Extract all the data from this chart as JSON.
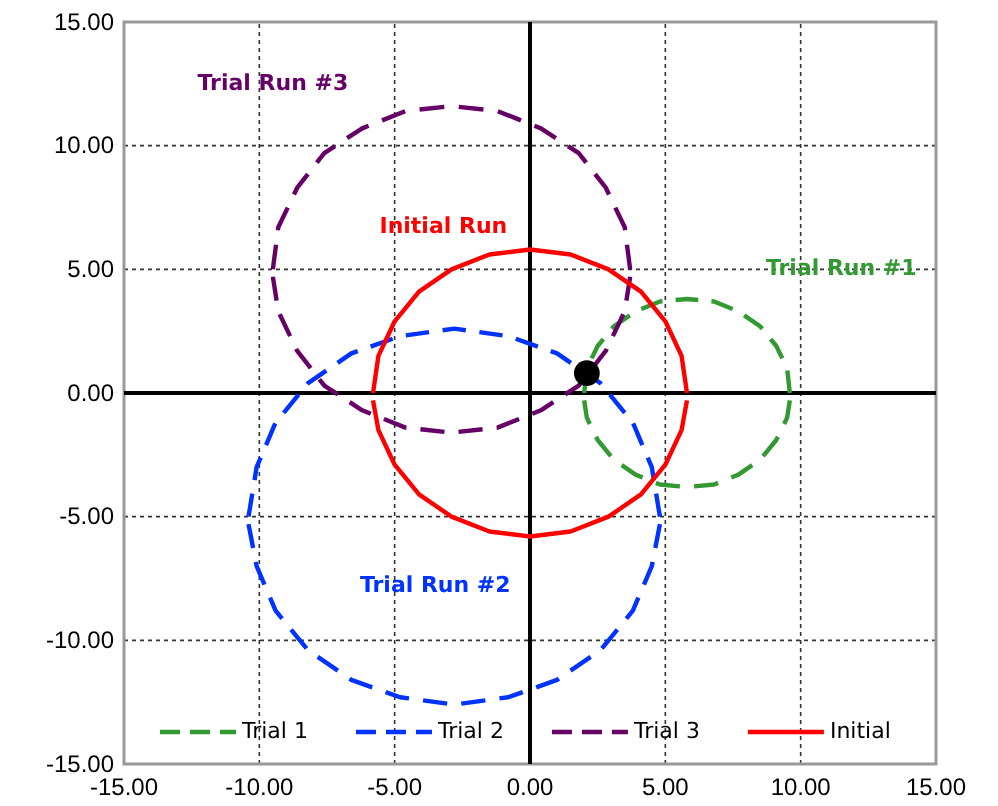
{
  "chart_data": {
    "type": "line",
    "xlim": [
      -15,
      15
    ],
    "ylim": [
      -15,
      15
    ],
    "xticks": [
      {
        "value": -15,
        "label": "-15.00"
      },
      {
        "value": -10,
        "label": "-10.00"
      },
      {
        "value": -5,
        "label": "-5.00"
      },
      {
        "value": 0,
        "label": "0.00"
      },
      {
        "value": 5,
        "label": "5.00"
      },
      {
        "value": 10,
        "label": "10.00"
      },
      {
        "value": 15,
        "label": "15.00"
      }
    ],
    "yticks": [
      {
        "value": -15,
        "label": "-15.00"
      },
      {
        "value": -10,
        "label": "-10.00"
      },
      {
        "value": -5,
        "label": "-5.00"
      },
      {
        "value": 0,
        "label": "0.00"
      },
      {
        "value": 5,
        "label": "5.00"
      },
      {
        "value": 10,
        "label": "10.00"
      },
      {
        "value": 15,
        "label": "15.00"
      }
    ],
    "grid": true,
    "legend": "bottom",
    "series": [
      {
        "name": "Trial 1",
        "color": "#339933",
        "line_style": "dashed",
        "marker": "none",
        "x": [
          2.0,
          2.1,
          2.5,
          3.1,
          3.9,
          4.8,
          5.8,
          6.8,
          7.7,
          8.5,
          9.1,
          9.5,
          9.6
        ],
        "values": [
          0,
          1.0,
          1.9,
          2.7,
          3.3,
          3.7,
          3.8,
          3.7,
          3.3,
          2.7,
          1.9,
          1.0,
          0
        ]
      },
      {
        "color": "#339933",
        "line_style": "dashed",
        "marker": "none",
        "x": [
          2.0,
          2.1,
          2.5,
          3.1,
          3.9,
          4.8,
          5.8,
          6.8,
          7.7,
          8.5,
          9.1,
          9.5,
          9.6
        ],
        "values": [
          -0.3,
          -1.0,
          -1.9,
          -2.7,
          -3.3,
          -3.7,
          -3.8,
          -3.7,
          -3.3,
          -2.7,
          -1.9,
          -1.0,
          -0.3
        ]
      },
      {
        "name": "Trial 2",
        "color": "#0033ff",
        "line_style": "dashed",
        "marker": "none",
        "x": [
          -10.4,
          -10.1,
          -9.4,
          -8.2,
          -6.6,
          -4.8,
          -2.8,
          -0.8,
          1.0,
          2.6,
          3.8,
          4.5,
          4.8
        ],
        "values": [
          -5.0,
          -3.0,
          -1.2,
          0.4,
          1.6,
          2.3,
          2.6,
          2.3,
          1.6,
          0.4,
          -1.2,
          -3.0,
          -5.0
        ]
      },
      {
        "color": "#0033ff",
        "line_style": "dashed",
        "marker": "none",
        "x": [
          -10.4,
          -10.1,
          -9.4,
          -8.2,
          -6.6,
          -4.8,
          -2.8,
          -0.8,
          1.0,
          2.6,
          3.8,
          4.5,
          4.8
        ],
        "values": [
          -5.3,
          -7.0,
          -8.8,
          -10.4,
          -11.6,
          -12.3,
          -12.6,
          -12.3,
          -11.6,
          -10.4,
          -8.8,
          -7.0,
          -5.3
        ]
      },
      {
        "name": "Trial 3",
        "color": "#660066",
        "line_style": "dashed",
        "marker": "none",
        "x": [
          -9.5,
          -9.3,
          -8.6,
          -7.6,
          -6.2,
          -4.6,
          -2.9,
          -1.2,
          0.4,
          1.8,
          2.8,
          3.5,
          3.7
        ],
        "values": [
          5.0,
          6.7,
          8.3,
          9.7,
          10.7,
          11.4,
          11.6,
          11.4,
          10.7,
          9.7,
          8.3,
          6.7,
          5.0
        ]
      },
      {
        "color": "#660066",
        "line_style": "dashed",
        "marker": "none",
        "x": [
          -9.5,
          -9.3,
          -8.6,
          -7.6,
          -6.2,
          -4.6,
          -2.9,
          -1.2,
          0.4,
          1.8,
          2.8,
          3.5,
          3.7
        ],
        "values": [
          4.7,
          3.3,
          1.7,
          0.3,
          -0.7,
          -1.4,
          -1.6,
          -1.4,
          -0.7,
          0.3,
          1.7,
          3.3,
          4.7
        ]
      },
      {
        "name": "Initial",
        "color": "#ff0000",
        "line_style": "solid",
        "marker": "none",
        "x": [
          -5.8,
          -5.6,
          -5.0,
          -4.1,
          -2.9,
          -1.5,
          0,
          1.5,
          2.9,
          4.1,
          5.0,
          5.6,
          5.8
        ],
        "values": [
          0,
          1.5,
          2.9,
          4.1,
          5.0,
          5.6,
          5.8,
          5.6,
          5.0,
          4.1,
          2.9,
          1.5,
          0
        ]
      },
      {
        "color": "#ff0000",
        "line_style": "solid",
        "marker": "none",
        "x": [
          -5.8,
          -5.6,
          -5.0,
          -4.1,
          -2.9,
          -1.5,
          0,
          1.5,
          2.9,
          4.1,
          5.0,
          5.6,
          5.8
        ],
        "values": [
          -0.3,
          -1.5,
          -2.9,
          -4.1,
          -5.0,
          -5.6,
          -5.8,
          -5.6,
          -5.0,
          -4.1,
          -2.9,
          -1.5,
          -0.3
        ]
      },
      {
        "type": "scatter",
        "color": "#000000",
        "marker": "circle",
        "x": [
          2.1
        ],
        "values": [
          0.8
        ]
      }
    ],
    "annotations": [
      "Trial Run #3",
      "Initial Run",
      "Trial Run #1",
      "Trial Run #2"
    ]
  }
}
